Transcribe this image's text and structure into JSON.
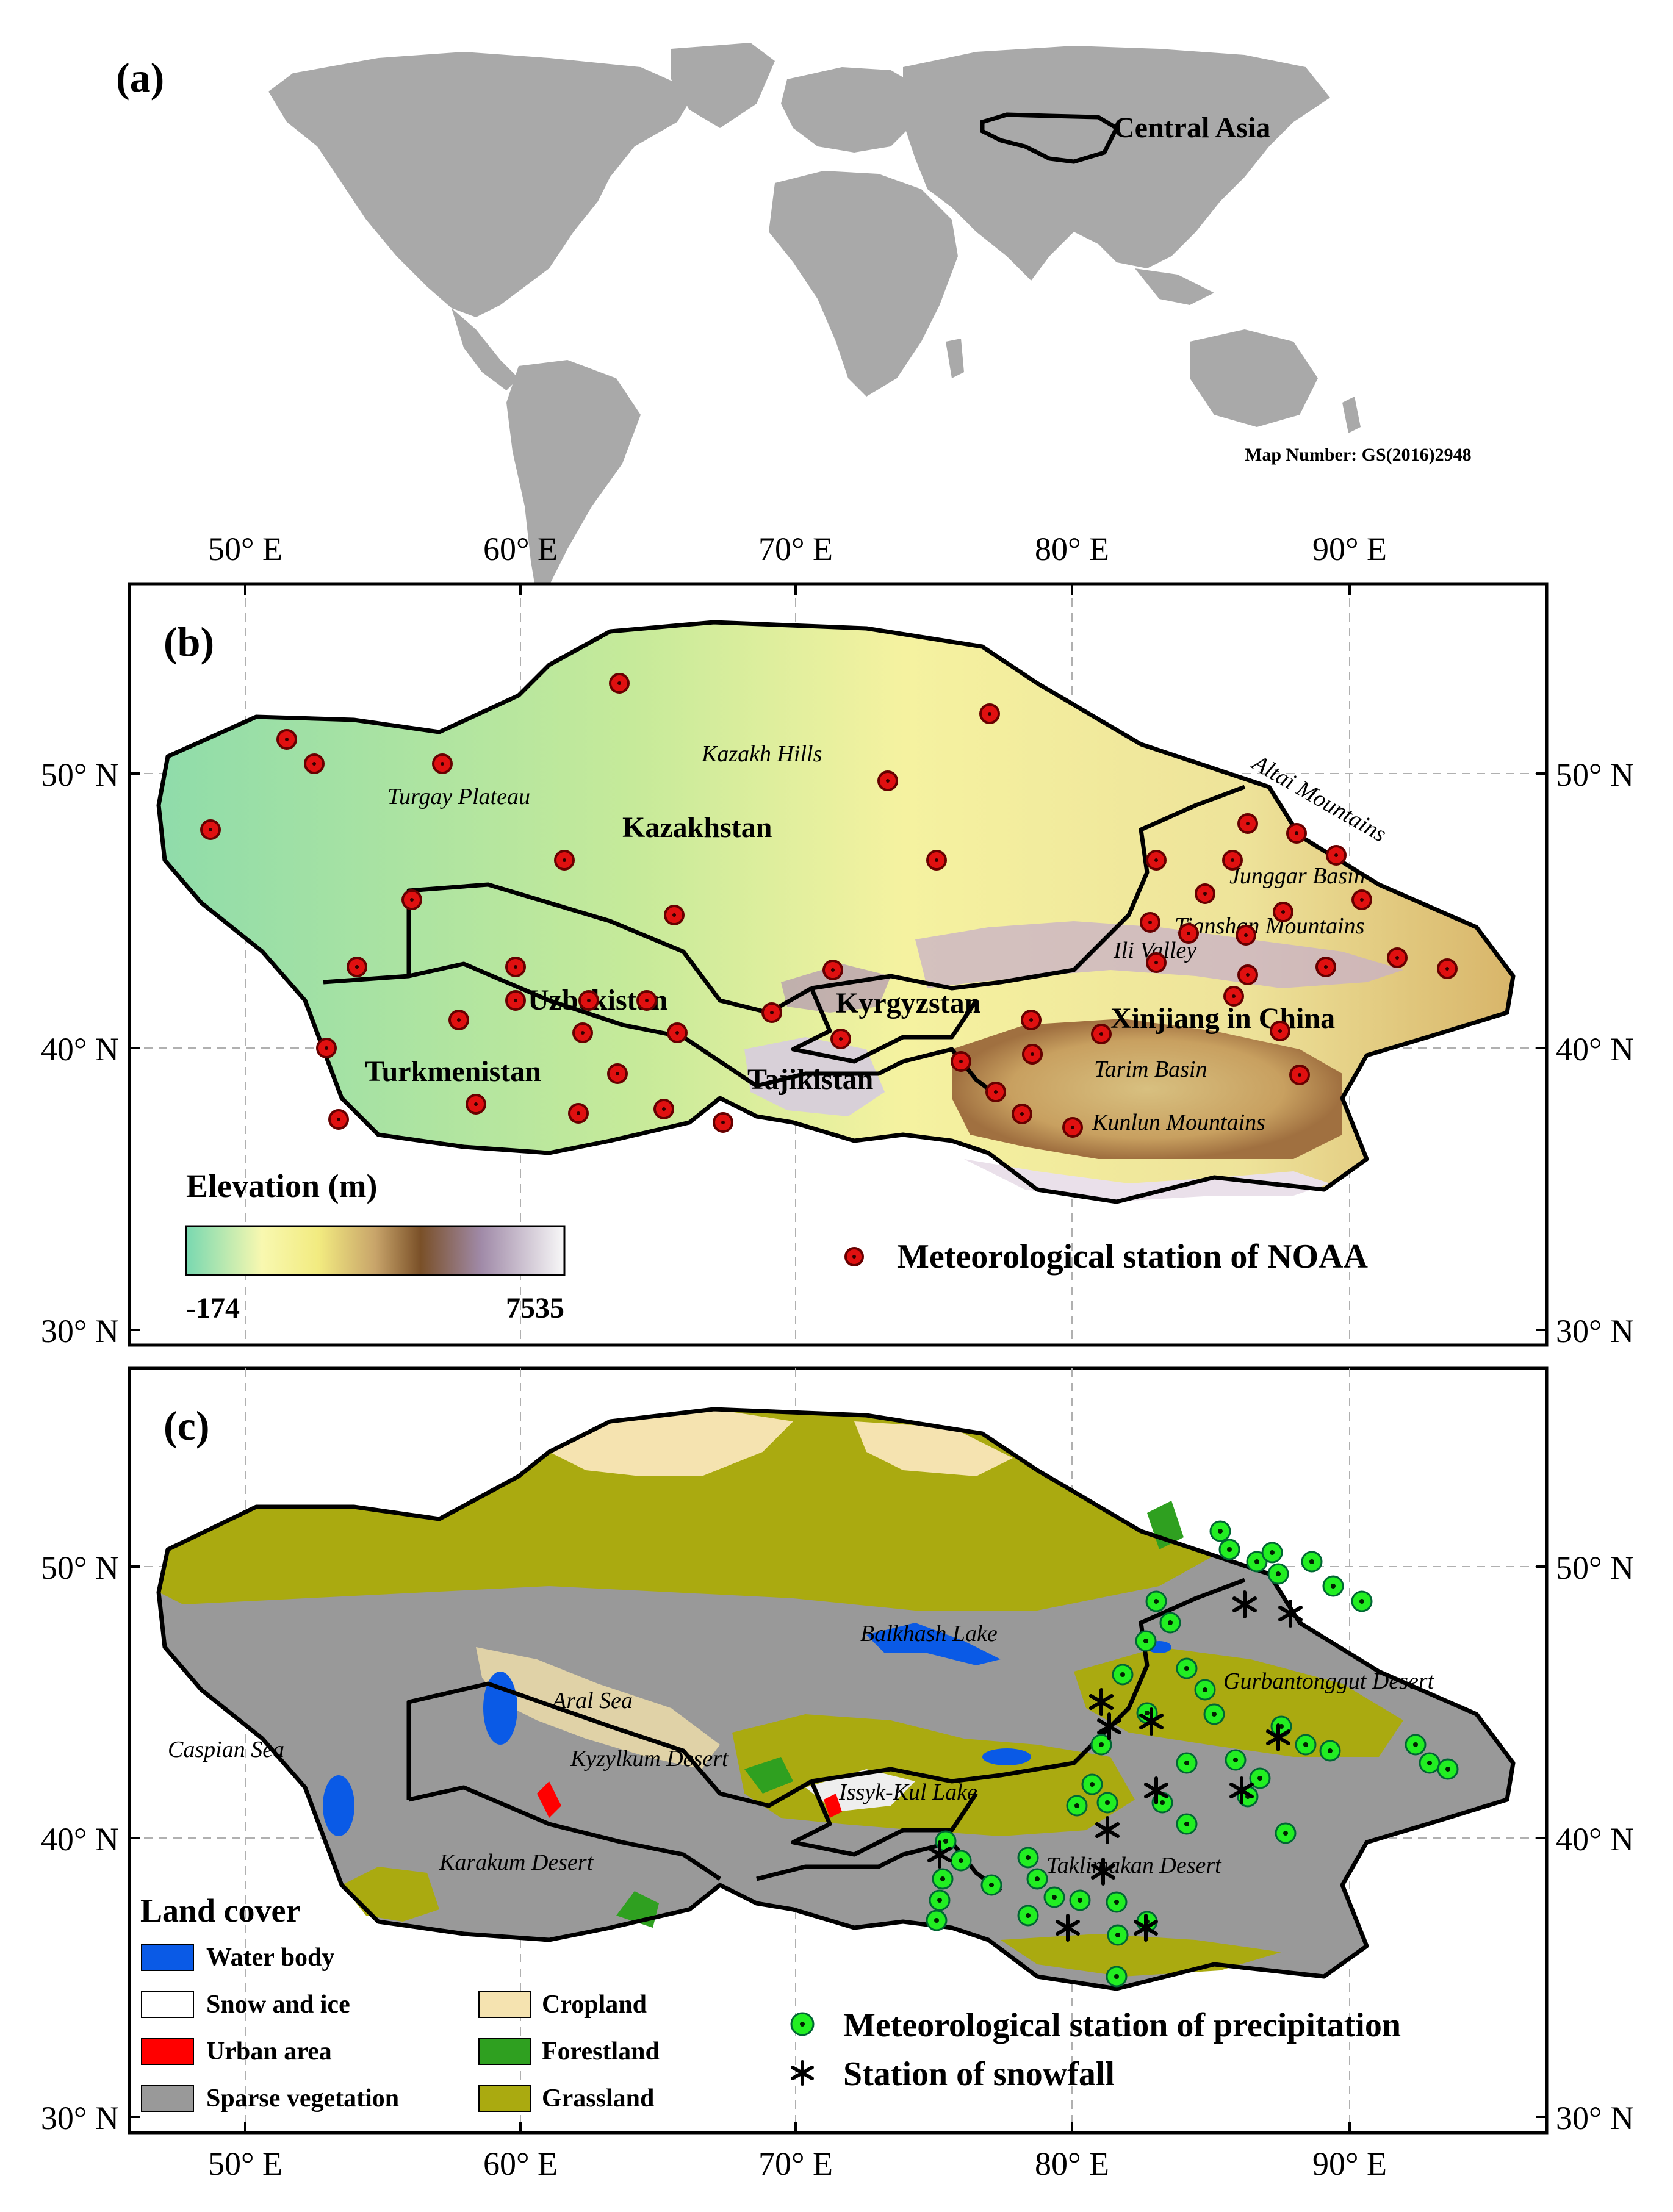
{
  "panel_a": {
    "label": "(a)",
    "region_label": "Central Asia",
    "map_number": "Map Number: GS(2016)2948"
  },
  "panel_b": {
    "label": "(b)",
    "lon_ticks": [
      "50° E",
      "60° E",
      "70° E",
      "80° E",
      "90° E"
    ],
    "lat_ticks": [
      "50° N",
      "40° N",
      "30° N"
    ],
    "countries": [
      "Kazakhstan",
      "Uzbekistan",
      "Turkmenistan",
      "Kyrgyzstan",
      "Tajikistan",
      "Xinjiang in China"
    ],
    "features": [
      "Turgay Plateau",
      "Kazakh Hills",
      "Altai Mountains",
      "Junggar Basin",
      "Tianshan Mountains",
      "Ili Valley",
      "Tarim Basin",
      "Kunlun Mountains"
    ],
    "elevation_legend": {
      "title": "Elevation (m)",
      "min": "-174",
      "max": "7535",
      "colors": [
        "#78d8b0",
        "#f8f8b0",
        "#f2eb80",
        "#c8a46a",
        "#7a5028",
        "#a08aa8",
        "#f8f8f8"
      ]
    },
    "station_legend": "Meteorological station of NOAA",
    "station_color": "#e01010"
  },
  "panel_c": {
    "label": "(c)",
    "lon_ticks": [
      "50° E",
      "60° E",
      "70° E",
      "80° E",
      "90° E"
    ],
    "lat_ticks": [
      "50° N",
      "40° N",
      "30° N"
    ],
    "features": [
      "Caspian Sea",
      "Aral Sea",
      "Kyzylkum Desert",
      "Karakum Desert",
      "Balkhash Lake",
      "Issyk-Kul Lake",
      "Gurbantonggut Desert",
      "Taklimakan Desert"
    ],
    "land_cover_title": "Land cover",
    "land_cover": [
      {
        "label": "Water body",
        "color": "#0a5ae6"
      },
      {
        "label": "Snow and ice",
        "color": "#ffffff"
      },
      {
        "label": "Urban area",
        "color": "#ff0000"
      },
      {
        "label": "Sparse vegetation",
        "color": "#999999"
      },
      {
        "label": "Cropland",
        "color": "#f5e3b0"
      },
      {
        "label": "Forestland",
        "color": "#2fa020"
      },
      {
        "label": "Grassland",
        "color": "#aaaa10"
      }
    ],
    "precip_legend": "Meteorological station of precipitation",
    "snow_legend": "Station of snowfall",
    "precip_color": "#22ee22"
  }
}
